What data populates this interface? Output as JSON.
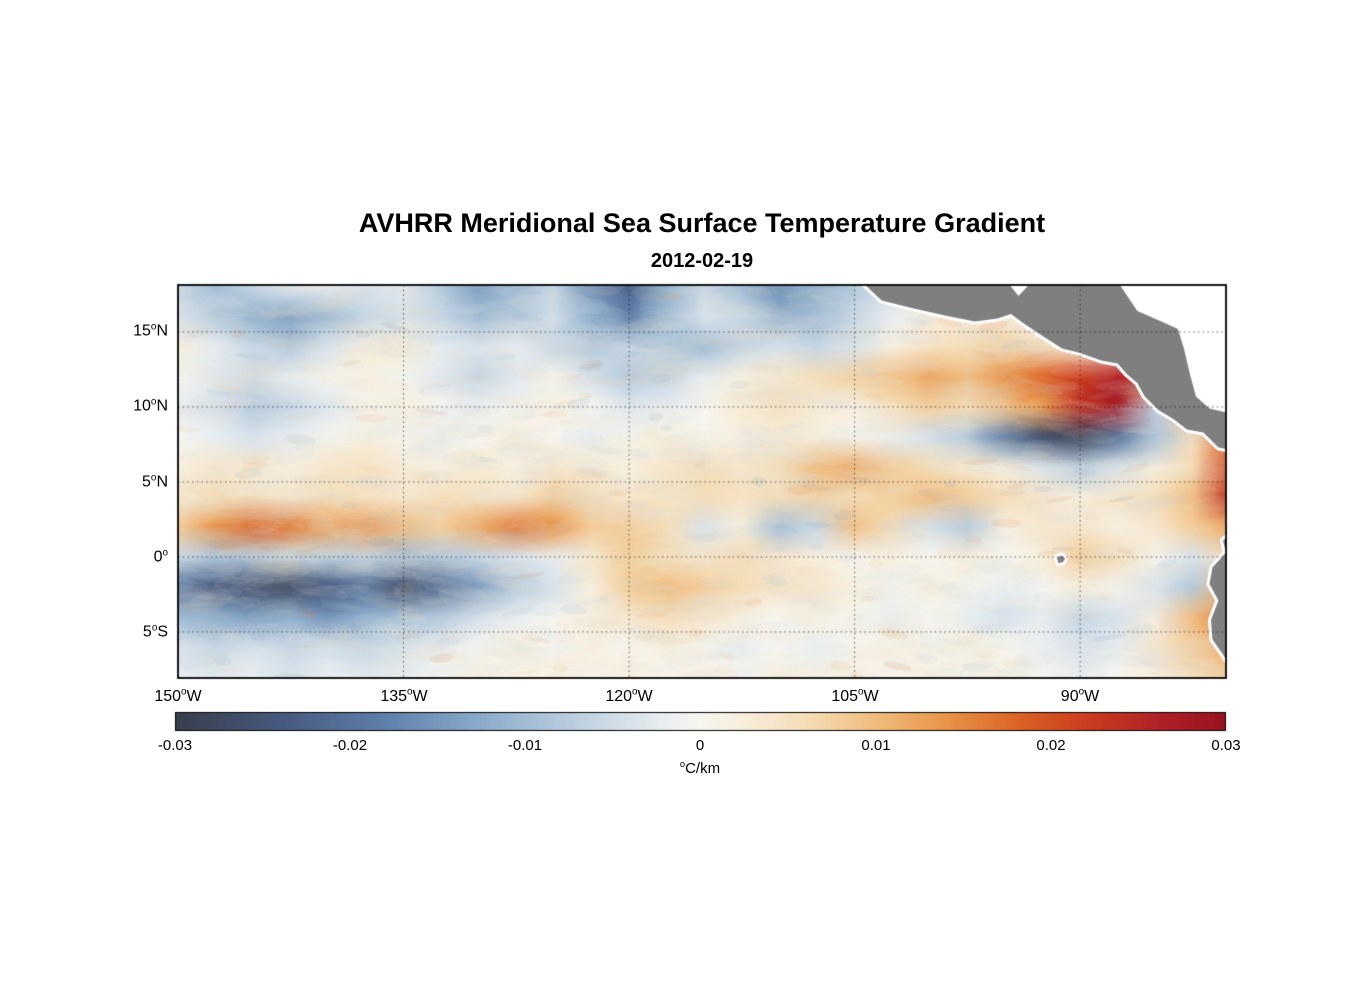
{
  "chart_data": {
    "type": "heatmap",
    "title": "AVHRR Meridional Sea Surface Temperature Gradient",
    "subtitle": "2012-02-19",
    "x": {
      "label_ticks": [
        {
          "pre": "150",
          "sup": "o",
          "post": "W"
        },
        {
          "pre": "135",
          "sup": "o",
          "post": "W"
        },
        {
          "pre": "120",
          "sup": "o",
          "post": "W"
        },
        {
          "pre": "105",
          "sup": "o",
          "post": "W"
        },
        {
          "pre": "90",
          "sup": "o",
          "post": "W"
        }
      ],
      "tick_lons": [
        -150,
        -135,
        -120,
        -105,
        -90
      ],
      "range_lon": [
        -150,
        -80.3
      ]
    },
    "y": {
      "label_ticks": [
        {
          "pre": "15",
          "sup": "o",
          "post": "N"
        },
        {
          "pre": "10",
          "sup": "o",
          "post": "N"
        },
        {
          "pre": "5",
          "sup": "o",
          "post": "N"
        },
        {
          "pre": "0",
          "sup": "o",
          "post": ""
        },
        {
          "pre": "5",
          "sup": "o",
          "post": "S"
        }
      ],
      "tick_lats": [
        15,
        10,
        5,
        0,
        -5
      ],
      "range_lat": [
        -8.07,
        18.13
      ]
    },
    "gridlines": {
      "lats": [
        15,
        10,
        5,
        0,
        -5
      ],
      "lons": [
        -150,
        -135,
        -120,
        -105,
        -90
      ]
    },
    "colorbar": {
      "min": -0.03,
      "max": 0.03,
      "ticks": [
        "-0.03",
        "-0.02",
        "-0.01",
        "0",
        "0.01",
        "0.02",
        "0.03"
      ],
      "unit": {
        "sup": "o",
        "post": "C/km"
      },
      "unit_plain": "°C/km"
    },
    "colormap_stops": [
      [
        -0.03,
        "#383e4c"
      ],
      [
        -0.024,
        "#46597f"
      ],
      [
        -0.018,
        "#5f80ab"
      ],
      [
        -0.012,
        "#8fafcd"
      ],
      [
        -0.006,
        "#c6d6e4"
      ],
      [
        -0.002,
        "#e9eef1"
      ],
      [
        0.0,
        "#f7f5ef"
      ],
      [
        0.002,
        "#f7efdf"
      ],
      [
        0.006,
        "#f5ddb8"
      ],
      [
        0.01,
        "#f0bc7e"
      ],
      [
        0.014,
        "#e89448"
      ],
      [
        0.018,
        "#dc6526"
      ],
      [
        0.022,
        "#cc3d1f"
      ],
      [
        0.026,
        "#b22227"
      ],
      [
        0.03,
        "#97121f"
      ]
    ],
    "grid": {
      "units": "°C/km",
      "value_scale": 0.001,
      "lon_start": -150,
      "lon_step": 2.5,
      "lat_start": 18,
      "lat_step": -2,
      "values": [
        [
          -6,
          -10,
          -6,
          -3,
          -2,
          -4,
          -3,
          -8,
          -14,
          -10,
          -6,
          -16,
          -22,
          -12,
          -6,
          -10,
          -16,
          -12,
          -8,
          -4,
          0,
          0,
          0,
          0,
          0,
          0,
          0,
          0,
          0
        ],
        [
          -4,
          -8,
          -12,
          -14,
          -10,
          -6,
          -4,
          -6,
          -10,
          -8,
          -5,
          -12,
          -18,
          -10,
          -4,
          -6,
          -12,
          -10,
          -6,
          -2,
          2,
          3,
          2,
          0,
          0,
          0,
          0,
          0,
          0
        ],
        [
          2,
          -2,
          -6,
          -8,
          -4,
          2,
          3,
          -2,
          -4,
          -2,
          -6,
          -8,
          -6,
          -8,
          -10,
          -6,
          -4,
          -6,
          -4,
          2,
          5,
          6,
          8,
          6,
          4,
          2,
          0,
          0,
          0
        ],
        [
          0,
          -3,
          -5,
          -2,
          0,
          2,
          0,
          -3,
          -6,
          -3,
          0,
          -4,
          -8,
          -6,
          -2,
          2,
          4,
          6,
          8,
          10,
          12,
          10,
          14,
          18,
          22,
          26,
          20,
          8,
          4
        ],
        [
          -2,
          -4,
          -8,
          -6,
          -3,
          0,
          2,
          0,
          -2,
          0,
          2,
          0,
          -3,
          -2,
          0,
          3,
          5,
          3,
          2,
          5,
          8,
          6,
          10,
          14,
          24,
          28,
          -6,
          10,
          14
        ],
        [
          0,
          -2,
          -4,
          -2,
          0,
          2,
          0,
          -2,
          0,
          2,
          0,
          -2,
          0,
          2,
          0,
          2,
          3,
          2,
          0,
          -2,
          -4,
          -8,
          -18,
          -26,
          -28,
          -20,
          -10,
          6,
          18
        ],
        [
          2,
          4,
          3,
          2,
          4,
          5,
          3,
          2,
          3,
          2,
          4,
          3,
          2,
          4,
          6,
          4,
          6,
          10,
          12,
          8,
          6,
          4,
          2,
          -4,
          -8,
          -4,
          2,
          6,
          20
        ],
        [
          4,
          6,
          5,
          4,
          6,
          5,
          4,
          6,
          5,
          4,
          8,
          6,
          4,
          5,
          6,
          5,
          6,
          8,
          6,
          8,
          10,
          8,
          6,
          4,
          2,
          4,
          6,
          10,
          24
        ],
        [
          8,
          14,
          18,
          16,
          12,
          14,
          10,
          8,
          12,
          16,
          14,
          8,
          8,
          6,
          -4,
          2,
          -10,
          -6,
          10,
          6,
          -4,
          -8,
          2,
          4,
          4,
          2,
          4,
          8,
          12
        ],
        [
          -6,
          -10,
          -8,
          -6,
          -8,
          -6,
          -10,
          -8,
          -6,
          -4,
          -2,
          4,
          8,
          6,
          4,
          6,
          4,
          2,
          0,
          2,
          0,
          2,
          0,
          2,
          8,
          6,
          0,
          -4,
          6
        ],
        [
          -20,
          -24,
          -26,
          -28,
          -24,
          -20,
          -26,
          -22,
          -14,
          -8,
          -4,
          2,
          8,
          10,
          8,
          6,
          4,
          4,
          2,
          0,
          2,
          0,
          -2,
          0,
          2,
          0,
          -4,
          -8,
          10
        ],
        [
          -10,
          -12,
          -14,
          -12,
          -16,
          -12,
          -10,
          -8,
          -4,
          -2,
          0,
          2,
          4,
          6,
          4,
          2,
          0,
          2,
          0,
          -2,
          0,
          -2,
          -4,
          -2,
          -6,
          -4,
          2,
          10,
          16
        ],
        [
          -4,
          -6,
          -4,
          -6,
          -4,
          -6,
          -4,
          -2,
          0,
          2,
          0,
          2,
          0,
          2,
          0,
          -2,
          0,
          -2,
          0,
          2,
          0,
          2,
          0,
          -2,
          -4,
          -2,
          4,
          8,
          12
        ],
        [
          -2,
          -3,
          -2,
          -4,
          -2,
          -3,
          -2,
          0,
          2,
          0,
          2,
          0,
          2,
          0,
          2,
          0,
          2,
          0,
          2,
          0,
          2,
          0,
          2,
          0,
          -2,
          0,
          2,
          6,
          8
        ]
      ]
    },
    "land": {
      "fill": "#7f7f7f",
      "halo": "#ffffff",
      "masses": [
        {
          "name": "central-america",
          "water": false,
          "pts": [
            [
              -104.8,
              18.6
            ],
            [
              -103.2,
              17.1
            ],
            [
              -101.2,
              16.6
            ],
            [
              -99.0,
              16.1
            ],
            [
              -97.0,
              15.7
            ],
            [
              -95.5,
              15.9
            ],
            [
              -94.6,
              16.2
            ],
            [
              -93.8,
              15.6
            ],
            [
              -92.6,
              14.8
            ],
            [
              -91.2,
              13.9
            ],
            [
              -90.0,
              13.6
            ],
            [
              -88.6,
              13.1
            ],
            [
              -87.5,
              12.9
            ],
            [
              -86.9,
              12.2
            ],
            [
              -86.2,
              11.6
            ],
            [
              -85.7,
              10.7
            ],
            [
              -85.2,
              10.2
            ],
            [
              -84.8,
              9.8
            ],
            [
              -83.8,
              9.2
            ],
            [
              -82.9,
              8.5
            ],
            [
              -81.8,
              8.3
            ],
            [
              -80.8,
              7.3
            ],
            [
              -79.8,
              7.1
            ],
            [
              -78.4,
              7.4
            ],
            [
              -78.4,
              19.0
            ]
          ]
        },
        {
          "name": "caribbean-sea",
          "water": true,
          "pts": [
            [
              -87.8,
              18.8
            ],
            [
              -86.2,
              16.4
            ],
            [
              -84.6,
              15.7
            ],
            [
              -83.5,
              15.2
            ],
            [
              -83.1,
              13.9
            ],
            [
              -82.7,
              12.2
            ],
            [
              -82.3,
              10.7
            ],
            [
              -81.4,
              9.9
            ],
            [
              -80.2,
              9.6
            ],
            [
              -78.4,
              9.5
            ],
            [
              -78.4,
              18.8
            ]
          ]
        },
        {
          "name": "bay-of-campeche",
          "water": true,
          "pts": [
            [
              -95.3,
              18.9
            ],
            [
              -94.1,
              17.4
            ],
            [
              -92.7,
              18.9
            ]
          ]
        },
        {
          "name": "south-america",
          "water": false,
          "pts": [
            [
              -78.4,
              2.6
            ],
            [
              -79.7,
              1.8
            ],
            [
              -80.5,
              1.1
            ],
            [
              -80.3,
              0.3
            ],
            [
              -81.2,
              -0.7
            ],
            [
              -81.4,
              -1.8
            ],
            [
              -80.8,
              -2.9
            ],
            [
              -81.3,
              -4.2
            ],
            [
              -81.2,
              -5.5
            ],
            [
              -80.5,
              -6.5
            ],
            [
              -80.0,
              -7.3
            ],
            [
              -79.8,
              -9.0
            ],
            [
              -78.4,
              -9.0
            ]
          ]
        },
        {
          "name": "galapagos",
          "water": false,
          "pts": [
            [
              -91.55,
              -0.05
            ],
            [
              -91.25,
              0.1
            ],
            [
              -91.0,
              -0.1
            ],
            [
              -91.15,
              -0.35
            ],
            [
              -91.45,
              -0.4
            ]
          ]
        }
      ]
    }
  }
}
